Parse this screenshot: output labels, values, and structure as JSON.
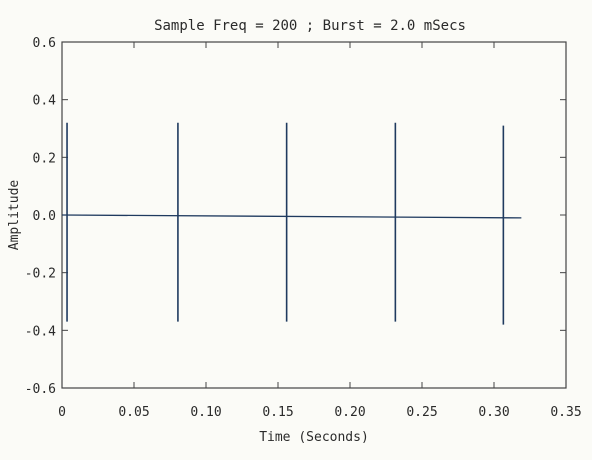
{
  "chart_data": {
    "type": "line",
    "title": "Sample Freq = 200 ; Burst = 2.0 mSecs",
    "xlabel": "Time (Seconds)",
    "ylabel": "Amplitude",
    "xlim": [
      0,
      0.35
    ],
    "ylim": [
      -0.6,
      0.6
    ],
    "x_ticks": [
      0,
      0.05,
      0.1,
      0.15,
      0.2,
      0.25,
      0.3,
      0.35
    ],
    "x_tick_labels": [
      "0",
      "0.05",
      "0.10",
      "0.15",
      "0.20",
      "0.25",
      "0.30",
      "0.35"
    ],
    "y_ticks": [
      0.6,
      0.4,
      0.2,
      0.0,
      -0.2,
      -0.4,
      -0.6
    ],
    "y_tick_labels": [
      "0.6",
      "0.4",
      "0.2",
      "0.0",
      "-0.2",
      "-0.4",
      "-0.6"
    ],
    "grid": false,
    "line_color": "#1f3a5f",
    "series": [
      {
        "baseline": {
          "x": [
            0,
            0.319
          ],
          "y": [
            0.0,
            -0.01
          ]
        },
        "spikes": [
          {
            "x": 0.0035,
            "ymax": 0.32,
            "ymin": -0.37
          },
          {
            "x": 0.0805,
            "ymax": 0.32,
            "ymin": -0.37
          },
          {
            "x": 0.156,
            "ymax": 0.32,
            "ymin": -0.37
          },
          {
            "x": 0.2315,
            "ymax": 0.32,
            "ymin": -0.37
          },
          {
            "x": 0.3065,
            "ymax": 0.31,
            "ymin": -0.38
          }
        ]
      }
    ]
  }
}
